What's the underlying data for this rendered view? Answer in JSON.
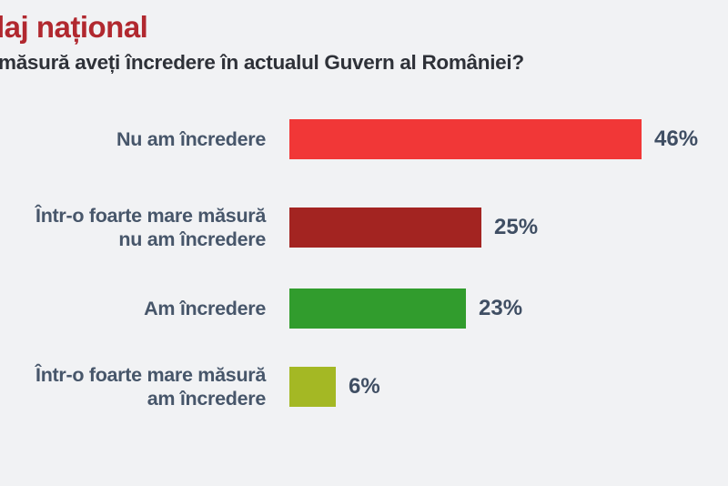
{
  "page": {
    "background_color": "#f1f2f4",
    "title": "daj național",
    "title_color": "#b1282f",
    "question": "măsură aveți încredere în actualul Guvern al României?",
    "question_color": "#2e3138"
  },
  "chart_data": {
    "type": "bar",
    "orientation": "horizontal",
    "title": "daj național",
    "question": "măsură aveți încredere în actualul Guvern al României?",
    "categories": [
      "Nu am încredere",
      "Într-o foarte mare măsură nu am încredere",
      "Am încredere",
      "Într-o foarte mare măsură am încredere"
    ],
    "values": [
      46,
      25,
      23,
      6
    ],
    "value_labels": [
      "46%",
      "25%",
      "23%",
      "6%"
    ],
    "bar_colors": [
      "#f13737",
      "#a32421",
      "#319c2d",
      "#a4b824"
    ],
    "unit": "%",
    "xlim": [
      0,
      50
    ],
    "grid": false,
    "legend": false,
    "label_color": "#47566a",
    "value_label_color": "#3f4e63",
    "bars": [
      {
        "label_lines": [
          "Nu am încredere"
        ],
        "value": 46,
        "value_label": "46%",
        "color": "#f13737"
      },
      {
        "label_lines": [
          "Într-o foarte mare măsură",
          "nu am încredere"
        ],
        "value": 25,
        "value_label": "25%",
        "color": "#a32421"
      },
      {
        "label_lines": [
          "Am încredere"
        ],
        "value": 23,
        "value_label": "23%",
        "color": "#319c2d"
      },
      {
        "label_lines": [
          "Într-o foarte mare măsură",
          "am încredere"
        ],
        "value": 6,
        "value_label": "6%",
        "color": "#a4b824"
      }
    ]
  }
}
